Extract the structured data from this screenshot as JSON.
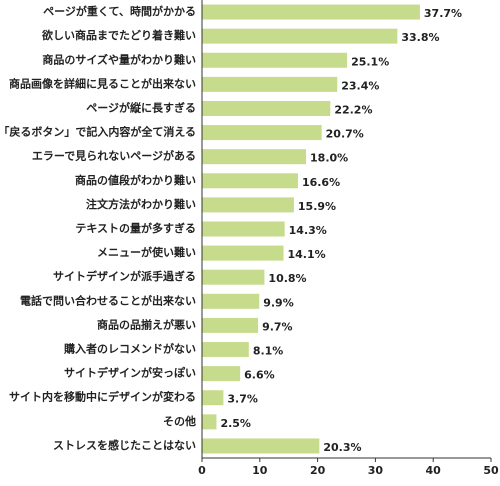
{
  "chart_data": {
    "type": "bar",
    "orientation": "horizontal",
    "color": "#c6db8c",
    "categories": [
      "ページが重くて、時間がかかる",
      "欲しい商品までたどり着き難い",
      "商品のサイズや量がわかり難い",
      "商品画像を詳細に見ることが出来ない",
      "ページが縦に長すぎる",
      "「戻るボタン」で記入内容が全て消える",
      "エラーで見られないページがある",
      "商品の値段がわかり難い",
      "注文方法がわかり難い",
      "テキストの量が多すぎる",
      "メニューが使い難い",
      "サイトデザインが派手過ぎる",
      "電話で問い合わせることが出来ない",
      "商品の品揃えが悪い",
      "購入者のレコメンドがない",
      "サイトデザインが安っぽい",
      "サイト内を移動中にデザインが変わる",
      "その他",
      "ストレスを感じたことはない"
    ],
    "values": [
      37.7,
      33.8,
      25.1,
      23.4,
      22.2,
      20.7,
      18.0,
      16.6,
      15.9,
      14.3,
      14.1,
      10.8,
      9.9,
      9.7,
      8.1,
      6.6,
      3.7,
      2.5,
      20.3
    ],
    "value_labels": [
      "37.7%",
      "33.8%",
      "25.1%",
      "23.4%",
      "22.2%",
      "20.7%",
      "18.0%",
      "16.6%",
      "15.9%",
      "14.3%",
      "14.1%",
      "10.8%",
      "9.9%",
      "9.7%",
      "8.1%",
      "6.6%",
      "3.7%",
      "2.5%",
      "20.3%"
    ],
    "xlim": [
      0,
      50
    ],
    "xticks": [
      0,
      10,
      20,
      30,
      40,
      50
    ]
  }
}
